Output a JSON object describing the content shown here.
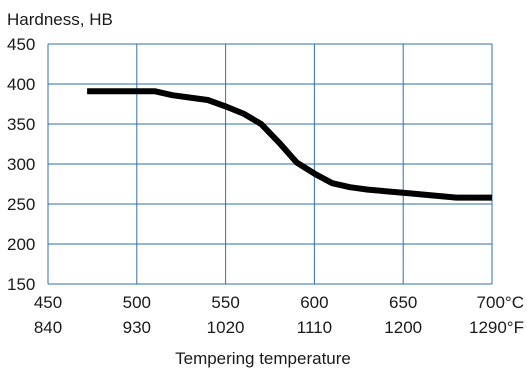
{
  "chart_data": {
    "type": "line",
    "ylabel": "Hardness, HB",
    "xlabel": "Tempering temperature",
    "xlim": [
      450,
      700
    ],
    "ylim": [
      150,
      450
    ],
    "grid": true,
    "x_ticks_c": [
      "450",
      "500",
      "550",
      "600",
      "650",
      "700°C"
    ],
    "x_ticks_f": [
      "840",
      "930",
      "1020",
      "1110",
      "1200",
      "1290°F"
    ],
    "x_tick_values": [
      450,
      500,
      550,
      600,
      650,
      700
    ],
    "y_ticks": [
      "450",
      "400",
      "350",
      "300",
      "250",
      "200",
      "150"
    ],
    "y_tick_values": [
      450,
      400,
      350,
      300,
      250,
      200,
      150
    ],
    "colors": {
      "grid": "#2f6fb3",
      "line": "#000000"
    },
    "series": [
      {
        "x": [
          472,
          480,
          490,
          500,
          510,
          520,
          530,
          540,
          550,
          560,
          570,
          580,
          590,
          600,
          610,
          620,
          630,
          640,
          650,
          660,
          670,
          680,
          690,
          700
        ],
        "y": [
          391,
          391,
          391,
          391,
          391,
          386,
          383,
          380,
          372,
          363,
          350,
          327,
          302,
          288,
          276,
          271,
          268,
          266,
          264,
          262,
          260,
          258,
          258,
          258
        ]
      }
    ]
  }
}
